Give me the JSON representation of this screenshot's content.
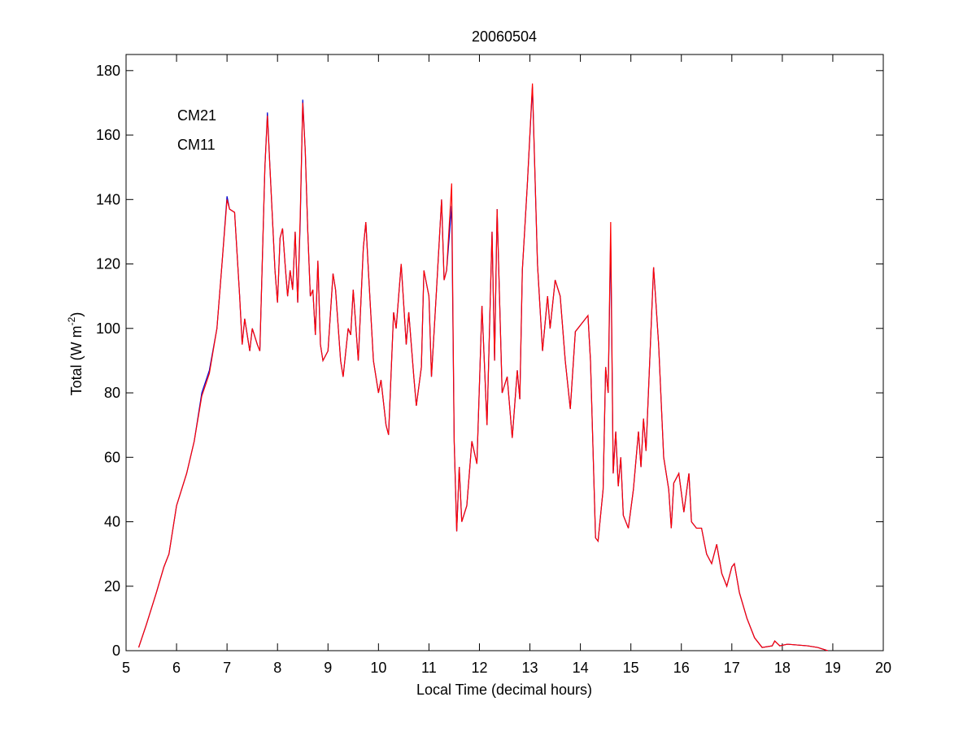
{
  "chart_data": {
    "type": "line",
    "title": "20060504",
    "xlabel": "Local Time (decimal hours)",
    "ylabel": [
      "Total (W m",
      "-2",
      ")"
    ],
    "x": [
      5.25,
      5.4,
      5.6,
      5.75,
      5.85,
      6.0,
      6.2,
      6.35,
      6.5,
      6.65,
      6.8,
      6.9,
      7.0,
      7.05,
      7.15,
      7.25,
      7.3,
      7.35,
      7.45,
      7.5,
      7.6,
      7.65,
      7.75,
      7.8,
      7.85,
      7.95,
      8.0,
      8.05,
      8.1,
      8.15,
      8.2,
      8.25,
      8.3,
      8.35,
      8.4,
      8.45,
      8.5,
      8.55,
      8.6,
      8.65,
      8.7,
      8.75,
      8.8,
      8.85,
      8.9,
      9.0,
      9.1,
      9.15,
      9.25,
      9.3,
      9.4,
      9.45,
      9.5,
      9.6,
      9.7,
      9.75,
      9.8,
      9.9,
      10.0,
      10.05,
      10.15,
      10.2,
      10.3,
      10.35,
      10.45,
      10.55,
      10.6,
      10.7,
      10.75,
      10.85,
      10.9,
      11.0,
      11.05,
      11.15,
      11.25,
      11.3,
      11.35,
      11.45,
      11.5,
      11.55,
      11.6,
      11.65,
      11.75,
      11.85,
      11.95,
      12.05,
      12.15,
      12.25,
      12.3,
      12.35,
      12.45,
      12.55,
      12.65,
      12.75,
      12.8,
      12.85,
      12.95,
      13.05,
      13.15,
      13.25,
      13.35,
      13.4,
      13.5,
      13.6,
      13.7,
      13.8,
      13.9,
      14.0,
      14.15,
      14.2,
      14.3,
      14.35,
      14.45,
      14.5,
      14.55,
      14.6,
      14.65,
      14.7,
      14.75,
      14.8,
      14.85,
      14.95,
      15.05,
      15.15,
      15.2,
      15.25,
      15.3,
      15.45,
      15.55,
      15.65,
      15.75,
      15.8,
      15.85,
      15.95,
      16.05,
      16.15,
      16.2,
      16.3,
      16.4,
      16.5,
      16.6,
      16.7,
      16.8,
      16.9,
      17.0,
      17.05,
      17.15,
      17.3,
      17.45,
      17.6,
      17.8,
      17.85,
      17.95,
      18.1,
      18.5,
      18.7,
      18.9
    ],
    "series": [
      {
        "name": "CM21",
        "color": "#0000cc",
        "values": [
          1,
          8,
          18,
          26,
          30,
          45,
          55,
          65,
          80,
          87,
          100,
          120,
          141,
          137,
          136,
          110,
          95,
          103,
          93,
          100,
          95,
          93,
          150,
          167,
          150,
          118,
          108,
          128,
          131,
          120,
          110,
          118,
          112,
          130,
          108,
          133,
          171,
          155,
          130,
          110,
          112,
          98,
          121,
          95,
          90,
          93,
          117,
          112,
          90,
          85,
          100,
          98,
          112,
          90,
          125,
          133,
          118,
          90,
          80,
          84,
          70,
          67,
          105,
          100,
          120,
          95,
          105,
          85,
          76,
          88,
          118,
          110,
          85,
          112,
          140,
          115,
          118,
          138,
          65,
          37,
          57,
          40,
          45,
          65,
          58,
          107,
          70,
          130,
          90,
          137,
          80,
          85,
          66,
          87,
          78,
          118,
          145,
          175,
          120,
          93,
          110,
          100,
          115,
          110,
          90,
          75,
          99,
          101,
          104,
          90,
          35,
          34,
          50,
          88,
          80,
          128,
          55,
          68,
          51,
          60,
          42,
          38,
          50,
          68,
          57,
          72,
          62,
          119,
          95,
          60,
          50,
          38,
          52,
          55,
          43,
          55,
          40,
          38,
          38,
          30,
          27,
          33,
          24,
          20,
          26,
          27,
          18,
          10,
          4,
          1,
          1.5,
          3,
          1.5,
          2,
          1.5,
          1,
          0
        ]
      },
      {
        "name": "CM11",
        "color": "#ff0000",
        "values": [
          1,
          8,
          18,
          26,
          30,
          45,
          55,
          65,
          79,
          86,
          100,
          120,
          140,
          137,
          136,
          110,
          95,
          103,
          93,
          100,
          95,
          93,
          150,
          166,
          150,
          118,
          108,
          128,
          131,
          120,
          110,
          118,
          112,
          130,
          108,
          135,
          170,
          155,
          130,
          110,
          112,
          98,
          121,
          95,
          90,
          93,
          117,
          112,
          90,
          85,
          100,
          98,
          112,
          90,
          125,
          133,
          118,
          90,
          80,
          84,
          70,
          67,
          105,
          100,
          120,
          95,
          105,
          85,
          76,
          88,
          118,
          110,
          85,
          112,
          140,
          115,
          118,
          145,
          65,
          37,
          57,
          40,
          45,
          65,
          58,
          107,
          70,
          130,
          90,
          137,
          80,
          85,
          66,
          87,
          78,
          118,
          145,
          176,
          120,
          93,
          110,
          100,
          115,
          110,
          90,
          75,
          99,
          101,
          104,
          90,
          35,
          34,
          50,
          88,
          80,
          133,
          55,
          68,
          51,
          60,
          42,
          38,
          50,
          68,
          57,
          72,
          62,
          119,
          95,
          60,
          50,
          38,
          52,
          55,
          43,
          55,
          40,
          38,
          38,
          30,
          27,
          33,
          24,
          20,
          26,
          27,
          18,
          10,
          4,
          1,
          1.5,
          3,
          1.5,
          2,
          1.5,
          1,
          0
        ]
      }
    ],
    "xlim": [
      5,
      20
    ],
    "xticks": [
      5,
      6,
      7,
      8,
      9,
      10,
      11,
      12,
      13,
      14,
      15,
      16,
      17,
      18,
      19,
      20
    ],
    "ylim": [
      0,
      185
    ],
    "yticks": [
      0,
      20,
      40,
      60,
      80,
      100,
      120,
      140,
      160,
      180
    ],
    "grid": false
  }
}
